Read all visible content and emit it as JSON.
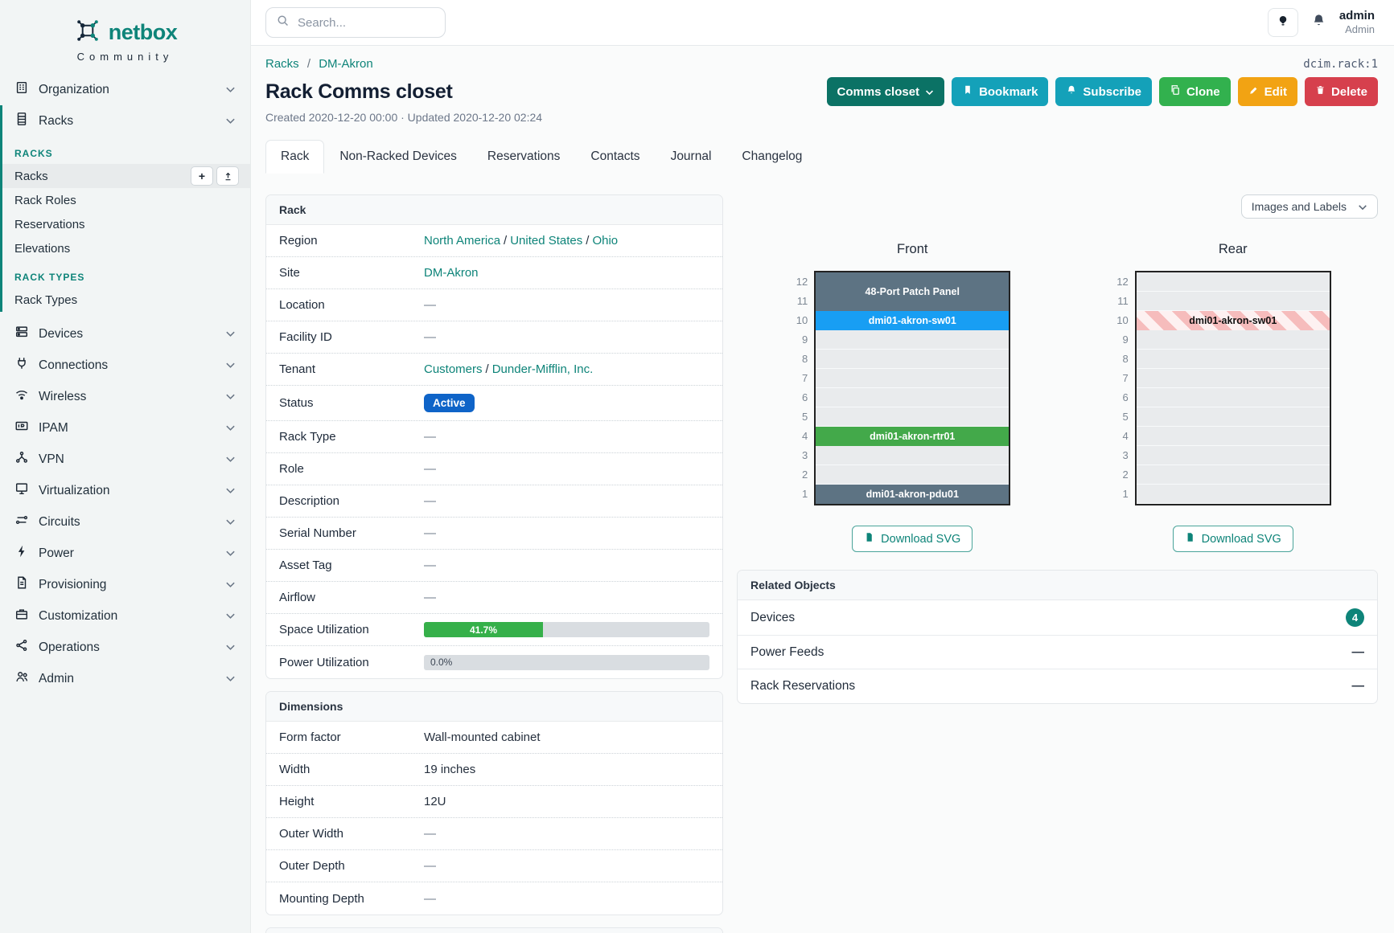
{
  "brand": {
    "logo": "netbox",
    "subtitle": "Community"
  },
  "header": {
    "search_placeholder": "Search...",
    "user_name": "admin",
    "user_role": "Admin",
    "object_id": "dcim.rack:1"
  },
  "sidebar": {
    "top_items": [
      {
        "label": "Organization",
        "icon": "building-icon"
      },
      {
        "label": "Racks",
        "icon": "rack-icon"
      }
    ],
    "racks_group": {
      "sections": [
        {
          "header": "RACKS",
          "items": [
            {
              "label": "Racks",
              "active": true,
              "actions": [
                "add",
                "import"
              ]
            },
            {
              "label": "Rack Roles"
            },
            {
              "label": "Reservations"
            },
            {
              "label": "Elevations"
            }
          ]
        },
        {
          "header": "RACK TYPES",
          "items": [
            {
              "label": "Rack Types"
            }
          ]
        }
      ]
    },
    "menu_items": [
      {
        "label": "Devices",
        "icon": "server-icon"
      },
      {
        "label": "Connections",
        "icon": "plug-icon"
      },
      {
        "label": "Wireless",
        "icon": "wifi-icon"
      },
      {
        "label": "IPAM",
        "icon": "ip-address-icon"
      },
      {
        "label": "VPN",
        "icon": "network-icon"
      },
      {
        "label": "Virtualization",
        "icon": "monitor-icon"
      },
      {
        "label": "Circuits",
        "icon": "transfer-icon"
      },
      {
        "label": "Power",
        "icon": "bolt-icon"
      },
      {
        "label": "Provisioning",
        "icon": "document-icon"
      },
      {
        "label": "Customization",
        "icon": "briefcase-icon"
      },
      {
        "label": "Operations",
        "icon": "nodes-icon"
      },
      {
        "label": "Admin",
        "icon": "users-icon"
      }
    ]
  },
  "page": {
    "breadcrumb": [
      "Racks",
      "DM-Akron"
    ],
    "title": "Rack Comms closet",
    "meta": "Created 2020-12-20 00:00 · Updated 2020-12-20 02:24",
    "buttons": {
      "view_dropdown": "Comms closet",
      "bookmark": "Bookmark",
      "subscribe": "Subscribe",
      "clone": "Clone",
      "edit": "Edit",
      "delete": "Delete"
    },
    "tabs": [
      {
        "label": "Rack",
        "active": true
      },
      {
        "label": "Non-Racked Devices"
      },
      {
        "label": "Reservations"
      },
      {
        "label": "Contacts"
      },
      {
        "label": "Journal"
      },
      {
        "label": "Changelog"
      }
    ]
  },
  "rack_panel": {
    "title": "Rack",
    "rows": {
      "region": {
        "label": "Region",
        "links": [
          "North America",
          "United States",
          "Ohio"
        ]
      },
      "site": {
        "label": "Site",
        "link": "DM-Akron"
      },
      "location": {
        "label": "Location",
        "value": "—"
      },
      "facility_id": {
        "label": "Facility ID",
        "value": "—"
      },
      "tenant": {
        "label": "Tenant",
        "links": [
          "Customers",
          "Dunder-Mifflin, Inc."
        ]
      },
      "status": {
        "label": "Status",
        "badge": "Active",
        "badge_color": "#0f64c8"
      },
      "rack_type": {
        "label": "Rack Type",
        "value": "—"
      },
      "role": {
        "label": "Role",
        "value": "—"
      },
      "description": {
        "label": "Description",
        "value": "—"
      },
      "serial_number": {
        "label": "Serial Number",
        "value": "—"
      },
      "asset_tag": {
        "label": "Asset Tag",
        "value": "—"
      },
      "airflow": {
        "label": "Airflow",
        "value": "—"
      },
      "space_utilization": {
        "label": "Space Utilization",
        "percent_label": "41.7%",
        "fraction": 0.417,
        "bar_color": "#36b04a"
      },
      "power_utilization": {
        "label": "Power Utilization",
        "percent_label": "0.0%",
        "fraction": 0.0
      }
    }
  },
  "dimensions_panel": {
    "title": "Dimensions",
    "rows": [
      {
        "label": "Form factor",
        "value": "Wall-mounted cabinet"
      },
      {
        "label": "Width",
        "value": "19 inches"
      },
      {
        "label": "Height",
        "value": "12U"
      },
      {
        "label": "Outer Width",
        "value": "—"
      },
      {
        "label": "Outer Depth",
        "value": "—"
      },
      {
        "label": "Mounting Depth",
        "value": "—"
      }
    ]
  },
  "elevations": {
    "view_toggle_label": "Images and Labels",
    "download_label": "Download SVG",
    "front": {
      "title": "Front",
      "units": 12,
      "devices": [
        {
          "name": "48-Port Patch Panel",
          "top_unit": 12,
          "u_height": 2,
          "color": "#5d7383",
          "text_color": "#ffffff"
        },
        {
          "name": "dmi01-akron-sw01",
          "top_unit": 10,
          "u_height": 1,
          "color": "#189ef3",
          "text_color": "#ffffff"
        },
        {
          "name": "dmi01-akron-rtr01",
          "top_unit": 4,
          "u_height": 1,
          "color": "#43a94a",
          "text_color": "#ffffff"
        },
        {
          "name": "dmi01-akron-pdu01",
          "top_unit": 1,
          "u_height": 1,
          "color": "#5d7383",
          "text_color": "#ffffff"
        }
      ]
    },
    "rear": {
      "title": "Rear",
      "units": 12,
      "devices": [
        {
          "name": "dmi01-akron-sw01",
          "top_unit": 10,
          "u_height": 1,
          "striped": true,
          "text_color": "#111111"
        }
      ]
    }
  },
  "related_panel": {
    "title": "Related Objects",
    "rows": [
      {
        "label": "Devices",
        "count": "4"
      },
      {
        "label": "Power Feeds",
        "value": "—"
      },
      {
        "label": "Rack Reservations",
        "value": "—"
      }
    ]
  },
  "colors": {
    "accent_teal": "#0e8479",
    "button_dark_teal": "#0b7265",
    "button_cyan": "#14a1b9",
    "button_green": "#32b14e",
    "button_orange": "#f2a313",
    "button_red": "#d6404d",
    "status_active_blue": "#0f64c8",
    "utilization_green": "#36b04a",
    "device_slate": "#5d7383",
    "device_blue": "#189ef3",
    "device_green": "#43a94a"
  }
}
